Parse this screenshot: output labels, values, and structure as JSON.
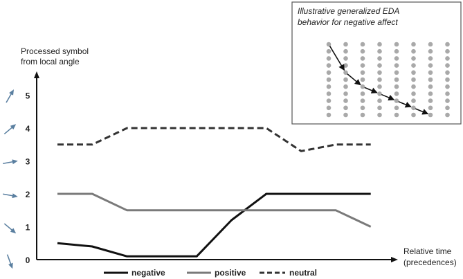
{
  "chart_data": {
    "type": "line",
    "ylabel": "Processed symbol from local angle",
    "ylabel_lines": [
      "Processed symbol",
      "from local angle"
    ],
    "xlabel": "Relative time (precedences)",
    "xlabel_lines": [
      "Relative time",
      "(precedences)"
    ],
    "ylim": [
      0,
      5
    ],
    "yticks": [
      0,
      1,
      2,
      3,
      4,
      5
    ],
    "grid": false,
    "legend": "bottom",
    "x": [
      0,
      1,
      2,
      3,
      4,
      5,
      6,
      7,
      8,
      9
    ],
    "series": [
      {
        "name": "negative",
        "style": "solid",
        "color": "#111111",
        "points": [
          [
            0,
            0.5
          ],
          [
            1,
            0.4
          ],
          [
            2,
            0.1
          ],
          [
            4,
            0.1
          ],
          [
            5,
            1.2
          ],
          [
            6,
            2.0
          ],
          [
            9,
            2.0
          ]
        ]
      },
      {
        "name": "positive",
        "style": "solid",
        "color": "#7a7a7a",
        "points": [
          [
            0,
            2.0
          ],
          [
            1,
            2.0
          ],
          [
            2,
            1.5
          ],
          [
            8,
            1.5
          ],
          [
            9,
            1.0
          ]
        ]
      },
      {
        "name": "neutral",
        "style": "dashed",
        "color": "#333333",
        "points": [
          [
            0,
            3.5
          ],
          [
            1,
            3.5
          ],
          [
            2,
            4.0
          ],
          [
            6,
            4.0
          ],
          [
            7,
            3.3
          ],
          [
            8,
            3.5
          ],
          [
            9,
            3.5
          ]
        ]
      }
    ],
    "arrow_angles_deg": [
      60,
      40,
      10,
      -10,
      -40,
      -70
    ]
  },
  "inset": {
    "title_lines": [
      "Illustrative generalized EDA",
      "behavior for negative affect"
    ],
    "grid_columns": 8,
    "grid_rows": 11,
    "path_points": [
      [
        0,
        0
      ],
      [
        1,
        4
      ],
      [
        2,
        6
      ],
      [
        3,
        7
      ],
      [
        4,
        8
      ],
      [
        5,
        9
      ],
      [
        6,
        10
      ]
    ]
  },
  "colors": {
    "axis": "#111111",
    "arrow": "#5a7fa0",
    "dot": "#a9a9a9",
    "inset_border": "#555555",
    "inset_arrow": "#111111"
  }
}
